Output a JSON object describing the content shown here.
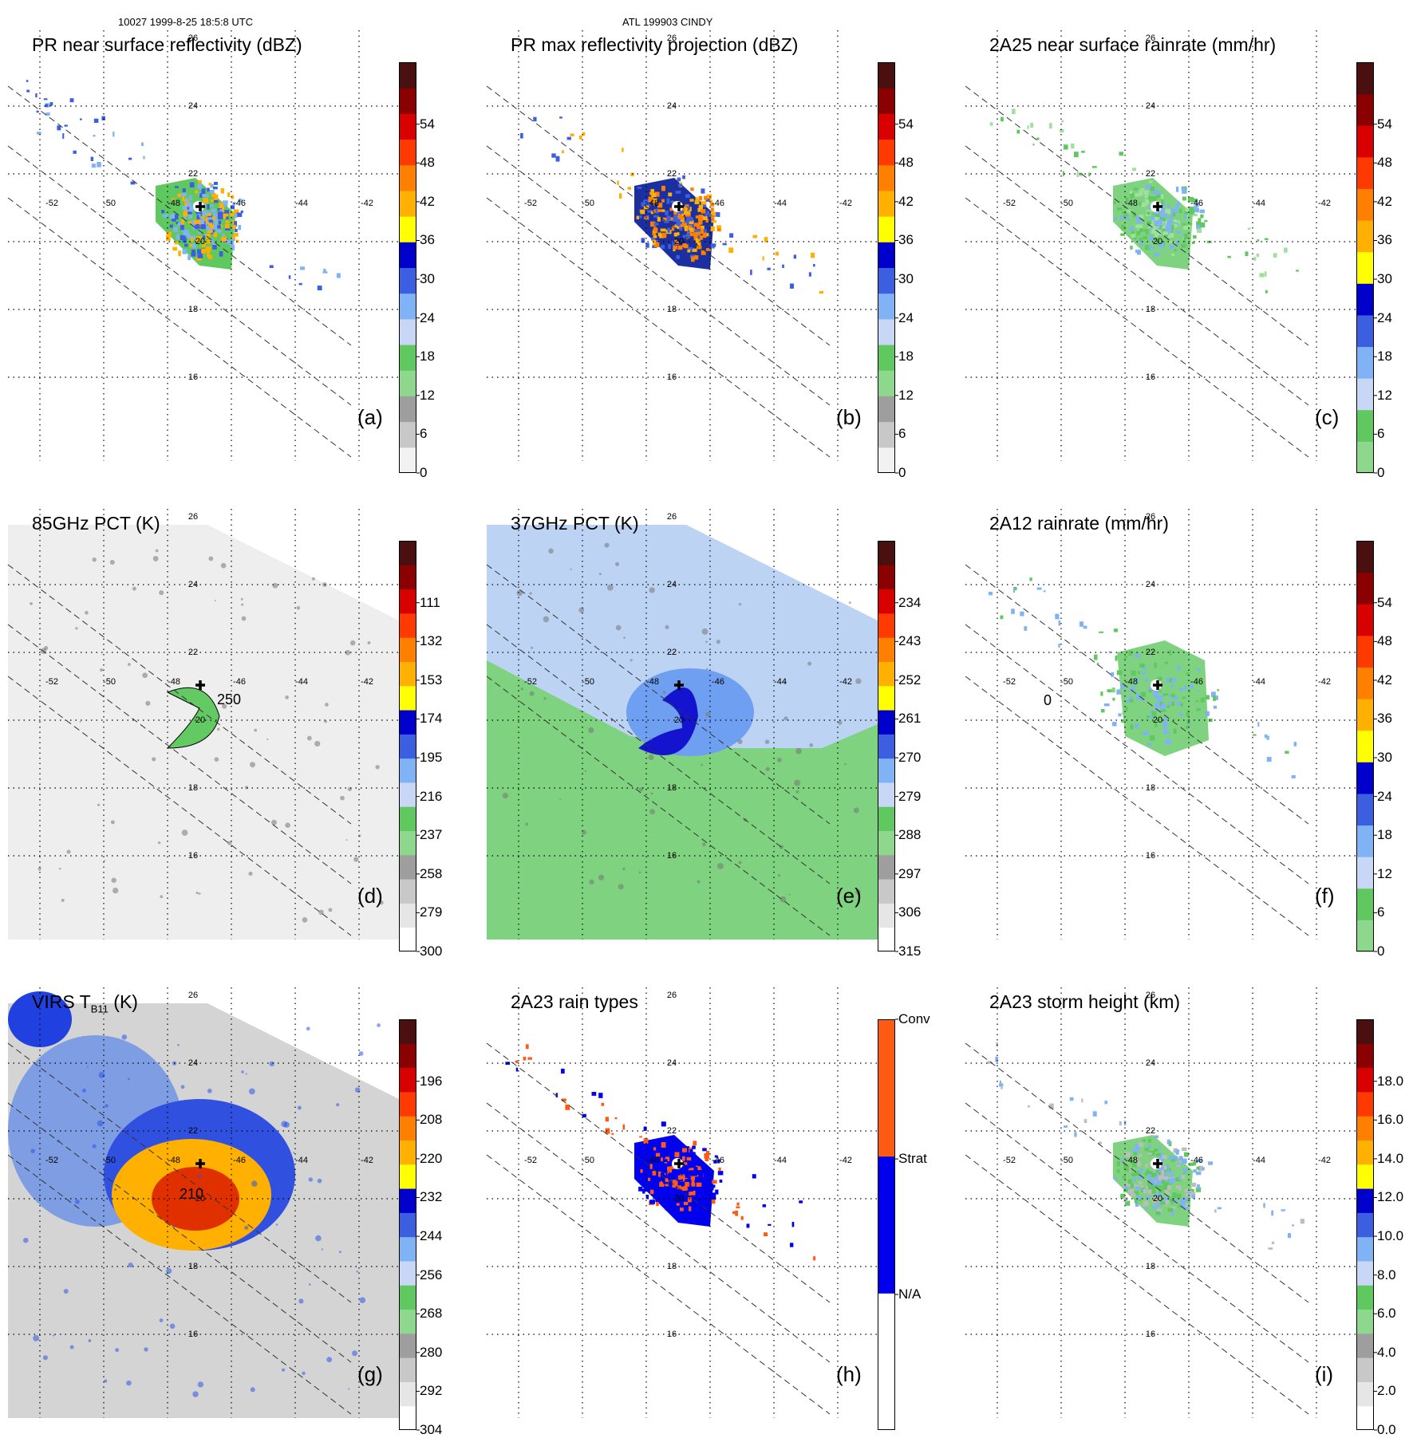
{
  "header": {
    "orbit_time": "10027 1999-8-25 18:5:8 UTC",
    "storm": "ATL 199903 CINDY"
  },
  "axes": {
    "lon_labels": [
      "-52",
      "-50",
      "-48",
      "-46",
      "-44",
      "-42"
    ],
    "lat_labels": [
      "26",
      "24",
      "22",
      "20",
      "18",
      "16"
    ]
  },
  "panels": [
    {
      "id": "a",
      "kind": "pr",
      "title": "PR near surface reflectivity (dBZ)",
      "label": "(a)",
      "colorbar": {
        "colors": [
          "#f2f2f2",
          "#c8c8c8",
          "#9e9e9e",
          "#8ed88e",
          "#5fc95f",
          "#c7d7f5",
          "#7fb3f5",
          "#3b5fe0",
          "#0000cc",
          "#ffff00",
          "#ffb000",
          "#ff7f00",
          "#ff3a00",
          "#d90000",
          "#8b0000",
          "#4a0f0f"
        ],
        "labels": [
          "0",
          "6",
          "12",
          "18",
          "24",
          "30",
          "36",
          "42",
          "48",
          "54"
        ]
      }
    },
    {
      "id": "b",
      "kind": "pr",
      "title": "PR max reflectivity projection (dBZ)",
      "label": "(b)",
      "colorbar": {
        "colors": [
          "#f2f2f2",
          "#c8c8c8",
          "#9e9e9e",
          "#8ed88e",
          "#5fc95f",
          "#c7d7f5",
          "#7fb3f5",
          "#3b5fe0",
          "#0000cc",
          "#ffff00",
          "#ffb000",
          "#ff7f00",
          "#ff3a00",
          "#d90000",
          "#8b0000",
          "#4a0f0f"
        ],
        "labels": [
          "0",
          "6",
          "12",
          "18",
          "24",
          "30",
          "36",
          "42",
          "48",
          "54"
        ]
      }
    },
    {
      "id": "c",
      "kind": "pr",
      "title": "2A25 near surface rainrate (mm/hr)",
      "label": "(c)",
      "colorbar": {
        "colors": [
          "#8ed88e",
          "#5fc95f",
          "#c7d7f5",
          "#7fb3f5",
          "#3b5fe0",
          "#0000cc",
          "#ffff00",
          "#ffb000",
          "#ff7f00",
          "#ff3a00",
          "#d90000",
          "#8b0000",
          "#4a0f0f"
        ],
        "labels": [
          "0",
          "6",
          "12",
          "18",
          "24",
          "30",
          "36",
          "42",
          "48",
          "54"
        ]
      }
    },
    {
      "id": "d",
      "kind": "wide",
      "title": "85GHz PCT (K)",
      "label": "(d)",
      "contour": "250",
      "colorbar": {
        "colors": [
          "#ffffff",
          "#e6e6e6",
          "#c8c8c8",
          "#9e9e9e",
          "#8ed88e",
          "#5fc95f",
          "#c7d7f5",
          "#7fb3f5",
          "#3b5fe0",
          "#0000cc",
          "#ffff00",
          "#ffb000",
          "#ff7f00",
          "#ff3a00",
          "#d90000",
          "#8b0000",
          "#4a0f0f"
        ],
        "labels": [
          "300",
          "279",
          "258",
          "237",
          "216",
          "195",
          "174",
          "153",
          "132",
          "111"
        ]
      }
    },
    {
      "id": "e",
      "kind": "wide",
      "title": "37GHz PCT (K)",
      "label": "(e)",
      "colorbar": {
        "colors": [
          "#ffffff",
          "#e6e6e6",
          "#c8c8c8",
          "#9e9e9e",
          "#8ed88e",
          "#5fc95f",
          "#c7d7f5",
          "#7fb3f5",
          "#3b5fe0",
          "#0000cc",
          "#ffff00",
          "#ffb000",
          "#ff7f00",
          "#ff3a00",
          "#d90000",
          "#8b0000",
          "#4a0f0f"
        ],
        "labels": [
          "315",
          "306",
          "297",
          "288",
          "279",
          "270",
          "261",
          "252",
          "243",
          "234"
        ]
      }
    },
    {
      "id": "f",
      "kind": "pr",
      "title": "2A12 rainrate (mm/hr)",
      "label": "(f)",
      "contour": "0",
      "colorbar": {
        "colors": [
          "#8ed88e",
          "#5fc95f",
          "#c7d7f5",
          "#7fb3f5",
          "#3b5fe0",
          "#0000cc",
          "#ffff00",
          "#ffb000",
          "#ff7f00",
          "#ff3a00",
          "#d90000",
          "#8b0000",
          "#4a0f0f"
        ],
        "labels": [
          "0",
          "6",
          "12",
          "18",
          "24",
          "30",
          "36",
          "42",
          "48",
          "54"
        ]
      }
    },
    {
      "id": "g",
      "kind": "wide",
      "title": "VIRS T",
      "title_sub": "B11",
      "title_tail": " (K)",
      "label": "(g)",
      "contour": "210",
      "colorbar": {
        "colors": [
          "#ffffff",
          "#e6e6e6",
          "#c8c8c8",
          "#9e9e9e",
          "#8ed88e",
          "#5fc95f",
          "#c7d7f5",
          "#7fb3f5",
          "#3b5fe0",
          "#0000cc",
          "#ffff00",
          "#ffb000",
          "#ff7f00",
          "#ff3a00",
          "#d90000",
          "#8b0000",
          "#4a0f0f"
        ],
        "labels": [
          "304",
          "292",
          "280",
          "268",
          "256",
          "244",
          "232",
          "220",
          "208",
          "196"
        ]
      }
    },
    {
      "id": "h",
      "kind": "pr",
      "title": "2A23 rain types",
      "label": "(h)",
      "colorbar": {
        "colors": [
          "#ffffff",
          "#0000ee",
          "#ff5a14"
        ],
        "labels": [
          "N/A",
          "Strat",
          "Conv"
        ]
      }
    },
    {
      "id": "i",
      "kind": "pr",
      "title": "2A23 storm height (km)",
      "label": "(i)",
      "colorbar": {
        "colors": [
          "#ffffff",
          "#e6e6e6",
          "#c8c8c8",
          "#9e9e9e",
          "#8ed88e",
          "#5fc95f",
          "#c7d7f5",
          "#7fb3f5",
          "#3b5fe0",
          "#0000cc",
          "#ffff00",
          "#ffb000",
          "#ff7f00",
          "#ff3a00",
          "#d90000",
          "#8b0000",
          "#4a0f0f"
        ],
        "labels": [
          "0.0",
          "2.0",
          "4.0",
          "6.0",
          "8.0",
          "10.0",
          "12.0",
          "14.0",
          "16.0",
          "18.0"
        ]
      }
    }
  ]
}
